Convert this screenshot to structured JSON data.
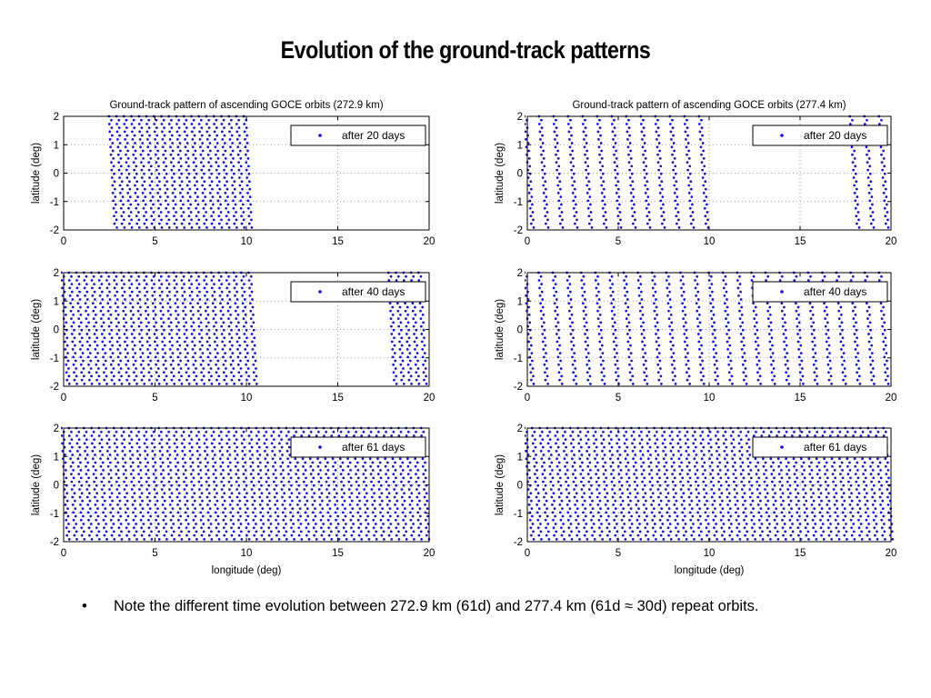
{
  "slide": {
    "title": "Evolution of the ground-track patterns",
    "note_bullet": "•",
    "note": "Note the different time evolution between 272.9 km (61d) and 277.4 km (61d ≈ 30d) repeat orbits."
  },
  "colors": {
    "marker": "#1010e6",
    "axis": "#000000",
    "grid": "#8c8c8c"
  },
  "chart_data": [
    {
      "type": "scatter",
      "title": "Ground-track pattern of ascending GOCE orbits (272.9 km)",
      "xlabel": "",
      "ylabel": "latitude (deg)",
      "legend": "after 20 days",
      "legend_position": "top-right",
      "xlim": [
        0,
        20
      ],
      "ylim": [
        -2,
        2
      ],
      "xticks": [
        0,
        5,
        10,
        15,
        20
      ],
      "yticks": [
        2,
        1,
        0,
        -1,
        -2
      ],
      "grid": true,
      "track_spacing_deg": 0.41,
      "track_slope_deg_lon_per_deg_lat": -0.08,
      "track_regions": [
        [
          2.7,
          10.4
        ]
      ]
    },
    {
      "type": "scatter",
      "title": "Ground-track pattern of ascending GOCE orbits (277.4 km)",
      "xlabel": "",
      "ylabel": "latitude (deg)",
      "legend": "after 20 days",
      "legend_position": "top-right",
      "xlim": [
        0,
        20
      ],
      "ylim": [
        -2,
        2
      ],
      "xticks": [
        0,
        5,
        10,
        15,
        20
      ],
      "yticks": [
        2,
        1,
        0,
        -1,
        -2
      ],
      "grid": true,
      "track_spacing_deg": 0.8,
      "track_slope_deg_lon_per_deg_lat": -0.1,
      "track_regions": [
        [
          0.1,
          10.0
        ],
        [
          18.0,
          20.0
        ]
      ]
    },
    {
      "type": "scatter",
      "title": "",
      "xlabel": "",
      "ylabel": "latitude (deg)",
      "legend": "after 40 days",
      "legend_position": "top-right",
      "xlim": [
        0,
        20
      ],
      "ylim": [
        -2,
        2
      ],
      "xticks": [
        0,
        5,
        10,
        15,
        20
      ],
      "yticks": [
        2,
        1,
        0,
        -1,
        -2
      ],
      "grid": true,
      "track_spacing_deg": 0.41,
      "track_slope_deg_lon_per_deg_lat": -0.08,
      "track_regions": [
        [
          0.1,
          10.4
        ],
        [
          18.0,
          20.0
        ]
      ]
    },
    {
      "type": "scatter",
      "title": "",
      "xlabel": "",
      "ylabel": "latitude (deg)",
      "legend": "after 40 days",
      "legend_position": "top-right",
      "xlim": [
        0,
        20
      ],
      "ylim": [
        -2,
        2
      ],
      "xticks": [
        0,
        5,
        10,
        15,
        20
      ],
      "yticks": [
        2,
        1,
        0,
        -1,
        -2
      ],
      "grid": true,
      "track_spacing_deg": 0.78,
      "track_slope_deg_lon_per_deg_lat": -0.1,
      "track_regions": [
        [
          0.1,
          20.0
        ]
      ]
    },
    {
      "type": "scatter",
      "title": "",
      "xlabel": "longitude (deg)",
      "ylabel": "latitude (deg)",
      "legend": "after 61 days",
      "legend_position": "top-right",
      "xlim": [
        0,
        20
      ],
      "ylim": [
        -2,
        2
      ],
      "xticks": [
        0,
        5,
        10,
        15,
        20
      ],
      "yticks": [
        2,
        1,
        0,
        -1,
        -2
      ],
      "grid": true,
      "track_spacing_deg": 0.41,
      "track_slope_deg_lon_per_deg_lat": -0.08,
      "track_regions": [
        [
          0.1,
          20.0
        ]
      ]
    },
    {
      "type": "scatter",
      "title": "",
      "xlabel": "longitude (deg)",
      "ylabel": "latitude (deg)",
      "legend": "after 61 days",
      "legend_position": "top-right",
      "xlim": [
        0,
        20
      ],
      "ylim": [
        -2,
        2
      ],
      "xticks": [
        0,
        5,
        10,
        15,
        20
      ],
      "yticks": [
        2,
        1,
        0,
        -1,
        -2
      ],
      "grid": true,
      "track_spacing_deg": 0.42,
      "track_slope_deg_lon_per_deg_lat": -0.1,
      "track_regions": [
        [
          0.1,
          20.0
        ]
      ]
    }
  ]
}
